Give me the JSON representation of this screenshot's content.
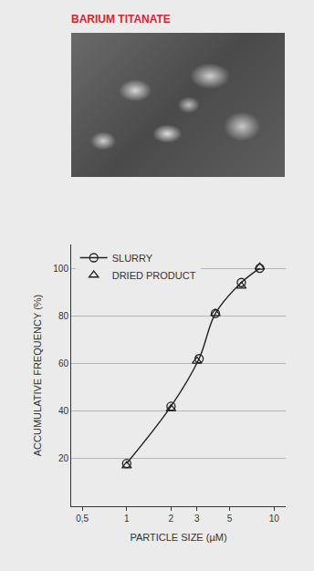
{
  "chart_data": {
    "type": "scatter",
    "title": "BARIUM TITANATE",
    "x_label": "PARTICLE SIZE (µM)",
    "y_label": "ACCUMULATIVE FREQUENCY (%)",
    "log": "x",
    "grid": true,
    "legend": "top left",
    "xlim": [
      0.42,
      12
    ],
    "xticks": [
      {
        "value": 0.5,
        "label": "0,5"
      },
      1,
      2,
      3,
      5,
      10
    ],
    "ylim": [
      0,
      110
    ],
    "yticks": [
      20,
      40,
      60,
      80,
      100
    ],
    "series": [
      {
        "name": "SLURRY",
        "type": "line",
        "marker": "circle-open",
        "line_style": "solid",
        "color": "#222222",
        "x": [
          1,
          2,
          3.1,
          4,
          6,
          8
        ],
        "values": [
          18,
          42,
          62,
          81,
          94,
          100
        ]
      },
      {
        "name": "DRIED PRODUCT",
        "type": "scatter",
        "marker": "triangle-up-open",
        "color": "#222222",
        "x": [
          1,
          2,
          3,
          4,
          6,
          8
        ],
        "values": [
          17,
          41,
          61,
          81,
          92.5,
          100.5
        ]
      }
    ]
  }
}
